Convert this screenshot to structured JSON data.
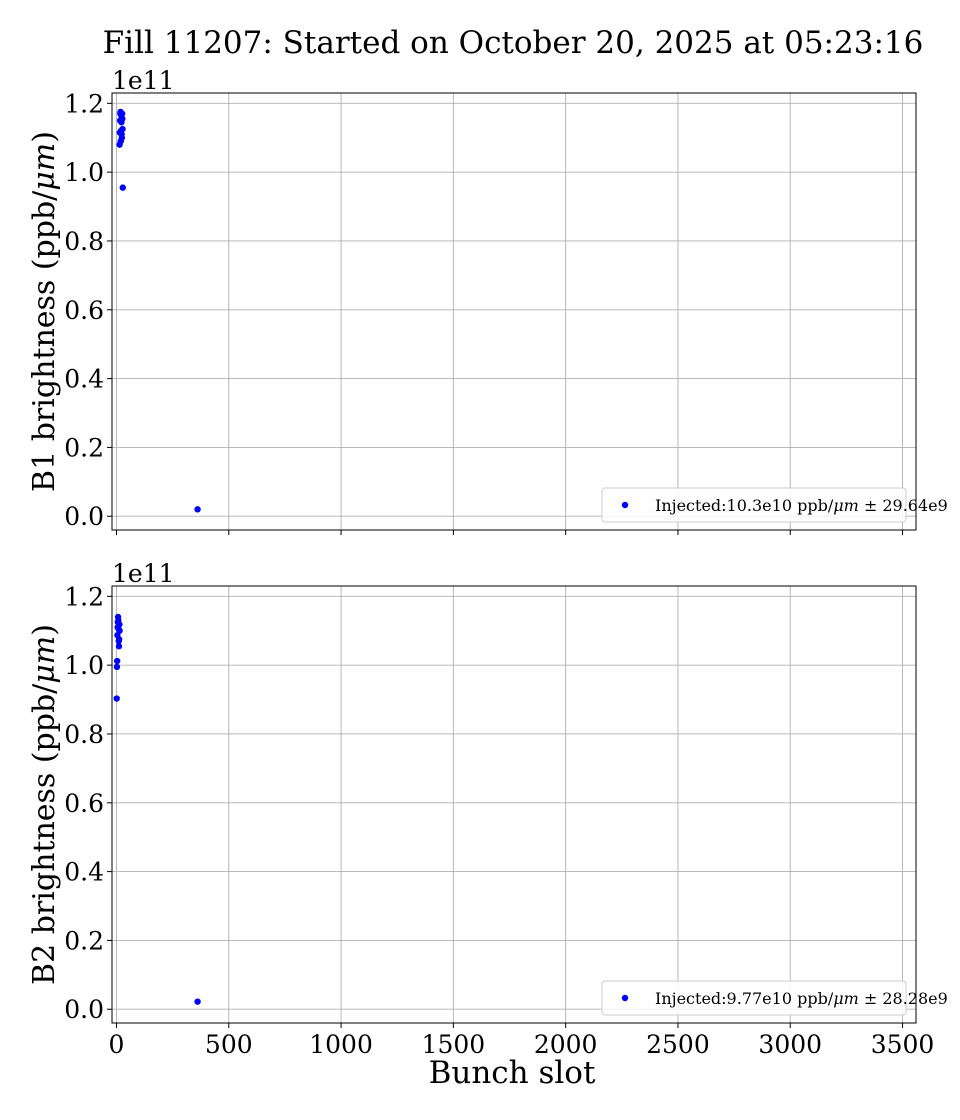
{
  "figure": {
    "title": "Fill 11207: Started on October 20, 2025 at 05:23:16"
  },
  "chart_data": [
    {
      "type": "scatter",
      "name": "panel-b1",
      "ylabel": "B1 brightness (ppb/μm)",
      "ylabel_parts": [
        "B1 brightness (ppb/",
        "μm",
        ")"
      ],
      "xlabel": "",
      "offset_text": "1e11",
      "xlim": [
        -20,
        3560
      ],
      "ylim": [
        -0.04,
        1.23
      ],
      "y_scale": 100000000000.0,
      "xticks": [
        0,
        500,
        1000,
        1500,
        2000,
        2500,
        3000,
        3500
      ],
      "xtick_labels_visible": false,
      "yticks": [
        0.0,
        0.2,
        0.4,
        0.6,
        0.8,
        1.0,
        1.2
      ],
      "ytick_labels": [
        "0.0",
        "0.2",
        "0.4",
        "0.6",
        "0.8",
        "1.0",
        "1.2"
      ],
      "grid": true,
      "legend_position": "lower-right",
      "series": [
        {
          "name": "Injected:10.3e10 ppb/μm ± 29.64e9",
          "legend_parts": [
            "Injected:10.3e10 ppb/",
            "μm",
            " ± 29.64e9"
          ],
          "color": "#0000ff",
          "x": [
            14,
            15,
            16,
            17,
            18,
            19,
            20,
            21,
            22,
            23,
            24,
            25,
            26,
            27,
            28,
            361
          ],
          "y": [
            1.08,
            1.115,
            1.15,
            1.17,
            1.175,
            1.09,
            1.12,
            1.165,
            1.145,
            1.11,
            1.1,
            1.17,
            1.155,
            1.125,
            0.955,
            0.02
          ]
        }
      ]
    },
    {
      "type": "scatter",
      "name": "panel-b2",
      "ylabel": "B2 brightness (ppb/μm)",
      "ylabel_parts": [
        "B2 brightness (ppb/",
        "μm",
        ")"
      ],
      "xlabel": "Bunch slot",
      "offset_text": "1e11",
      "xlim": [
        -20,
        3560
      ],
      "ylim": [
        -0.04,
        1.23
      ],
      "y_scale": 100000000000.0,
      "xticks": [
        0,
        500,
        1000,
        1500,
        2000,
        2500,
        3000,
        3500
      ],
      "xtick_labels_visible": true,
      "xtick_labels": [
        "0",
        "500",
        "1000",
        "1500",
        "2000",
        "2500",
        "3000",
        "3500"
      ],
      "yticks": [
        0.0,
        0.2,
        0.4,
        0.6,
        0.8,
        1.0,
        1.2
      ],
      "ytick_labels": [
        "0.0",
        "0.2",
        "0.4",
        "0.6",
        "0.8",
        "1.0",
        "1.2"
      ],
      "grid": true,
      "legend_position": "lower-right",
      "series": [
        {
          "name": "Injected:9.77e10 ppb/μm ± 28.28e9",
          "legend_parts": [
            "Injected:9.77e10 ppb/",
            "μm",
            " ± 28.28e9"
          ],
          "color": "#0000ff",
          "x": [
            1,
            2,
            3,
            4,
            5,
            6,
            7,
            8,
            9,
            10,
            11,
            12,
            13,
            14,
            361
          ],
          "y": [
            0.903,
            0.995,
            1.012,
            1.087,
            1.11,
            1.125,
            1.14,
            1.13,
            1.105,
            1.07,
            1.055,
            1.075,
            1.118,
            1.1,
            0.022
          ]
        }
      ]
    }
  ]
}
